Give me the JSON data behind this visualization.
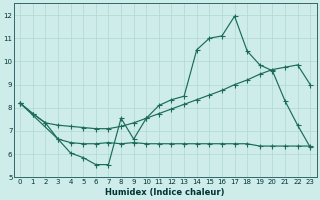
{
  "xlabel": "Humidex (Indice chaleur)",
  "xlim": [
    -0.5,
    23.5
  ],
  "ylim": [
    5.0,
    12.5
  ],
  "yticks": [
    5,
    6,
    7,
    8,
    9,
    10,
    11,
    12
  ],
  "xticks": [
    0,
    1,
    2,
    3,
    4,
    5,
    6,
    7,
    8,
    9,
    10,
    11,
    12,
    13,
    14,
    15,
    16,
    17,
    18,
    19,
    20,
    21,
    22,
    23
  ],
  "bg_color": "#ceecea",
  "line_color": "#1a6b5a",
  "grid_color": "#b0d8d4",
  "line1_x": [
    0,
    1,
    2,
    3,
    4,
    5,
    6,
    7,
    8,
    9,
    10,
    11,
    12,
    13,
    14,
    15,
    16,
    17,
    18,
    19,
    20,
    21,
    22,
    23
  ],
  "line1_y": [
    8.2,
    7.75,
    7.35,
    6.65,
    6.05,
    5.85,
    5.55,
    5.55,
    7.55,
    6.65,
    7.55,
    8.1,
    8.35,
    8.5,
    10.5,
    11.0,
    11.1,
    11.95,
    10.45,
    9.85,
    9.6,
    8.3,
    7.25,
    6.3
  ],
  "line2_x": [
    0,
    3,
    4,
    5,
    6,
    7,
    8,
    9,
    10,
    11,
    12,
    13,
    14,
    15,
    16,
    17,
    18,
    19,
    20,
    21,
    22,
    23
  ],
  "line2_y": [
    8.2,
    6.65,
    6.5,
    6.45,
    6.45,
    6.5,
    6.45,
    6.5,
    6.45,
    6.45,
    6.45,
    6.45,
    6.45,
    6.45,
    6.45,
    6.45,
    6.45,
    6.35,
    6.35,
    6.35,
    6.35,
    6.35
  ],
  "line3_x": [
    0,
    1,
    2,
    3,
    4,
    5,
    6,
    7,
    8,
    9,
    10,
    11,
    12,
    13,
    14,
    15,
    16,
    17,
    18,
    19,
    20,
    21,
    22,
    23
  ],
  "line3_y": [
    8.2,
    7.75,
    7.35,
    7.25,
    7.2,
    7.15,
    7.1,
    7.1,
    7.2,
    7.35,
    7.55,
    7.75,
    7.95,
    8.15,
    8.35,
    8.55,
    8.75,
    9.0,
    9.2,
    9.45,
    9.65,
    9.75,
    9.85,
    9.0
  ]
}
